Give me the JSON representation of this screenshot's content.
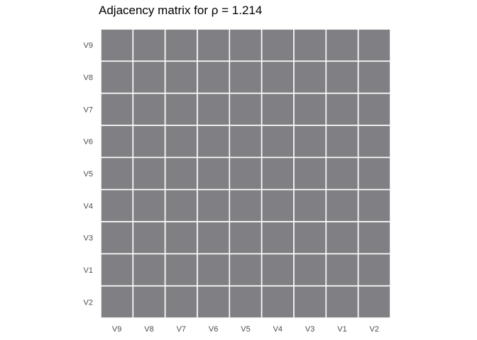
{
  "chart_data": {
    "type": "heatmap",
    "title": "Adjacency matrix for  ρ = 1.214",
    "xlabel": "",
    "ylabel": "",
    "x_categories": [
      "V9",
      "V8",
      "V7",
      "V6",
      "V5",
      "V4",
      "V3",
      "V1",
      "V2"
    ],
    "y_categories": [
      "V9",
      "V8",
      "V7",
      "V6",
      "V5",
      "V4",
      "V3",
      "V1",
      "V2"
    ],
    "values": [
      [
        1,
        1,
        1,
        1,
        1,
        1,
        1,
        1,
        1
      ],
      [
        1,
        1,
        1,
        1,
        1,
        1,
        1,
        1,
        1
      ],
      [
        1,
        1,
        1,
        1,
        1,
        1,
        1,
        1,
        1
      ],
      [
        1,
        1,
        1,
        1,
        1,
        1,
        1,
        1,
        1
      ],
      [
        1,
        1,
        1,
        1,
        1,
        1,
        1,
        1,
        1
      ],
      [
        1,
        1,
        1,
        1,
        1,
        1,
        1,
        1,
        1
      ],
      [
        1,
        1,
        1,
        1,
        1,
        1,
        1,
        1,
        1
      ],
      [
        1,
        1,
        1,
        1,
        1,
        1,
        1,
        1,
        1
      ],
      [
        1,
        1,
        1,
        1,
        1,
        1,
        1,
        1,
        1
      ]
    ],
    "fill_color": "#808084",
    "cell_border_color": "#ffffff",
    "grid": false,
    "legend": "none"
  }
}
